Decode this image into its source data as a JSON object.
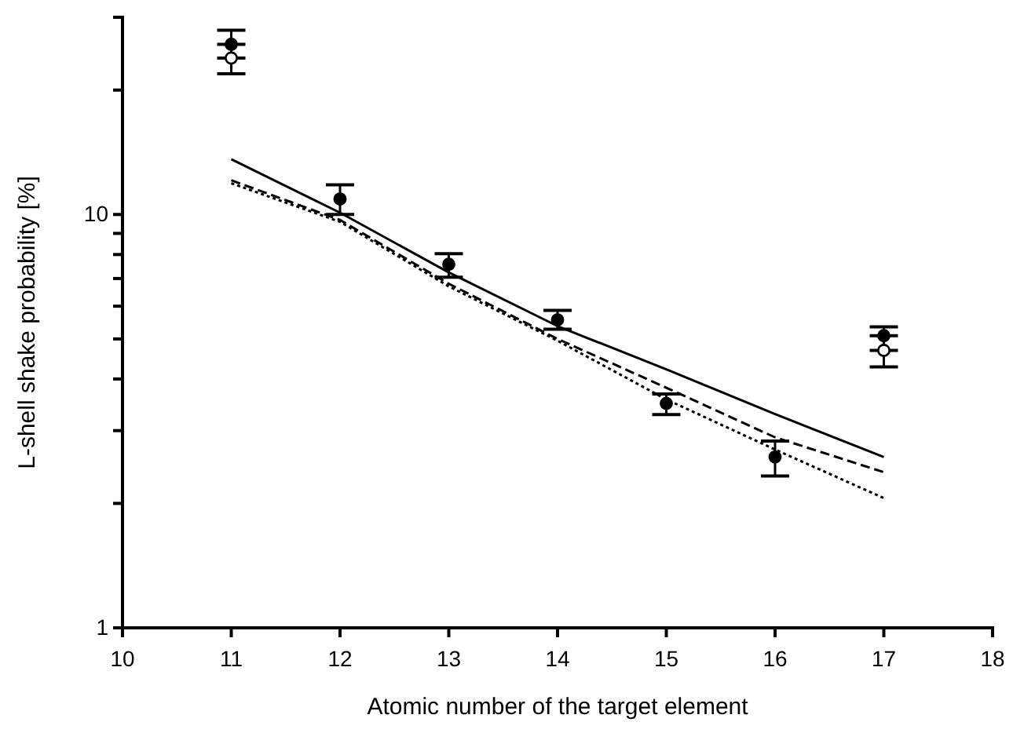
{
  "chart_data": {
    "type": "scatter",
    "xlabel": "Atomic number of the target element",
    "ylabel": "L-shell shake probability [%]",
    "xlim": [
      10,
      18
    ],
    "xticks": [
      10,
      11,
      12,
      13,
      14,
      15,
      16,
      17,
      18
    ],
    "ylim": [
      1,
      30
    ],
    "log": true,
    "yticks": [
      1,
      {
        "value": 2,
        "label": null
      },
      {
        "value": 3,
        "label": null
      },
      {
        "value": 4,
        "label": null
      },
      {
        "value": 5,
        "label": null
      },
      {
        "value": 6,
        "label": null
      },
      {
        "value": 7,
        "label": null
      },
      {
        "value": 8,
        "label": null
      },
      {
        "value": 9,
        "label": null
      },
      10,
      {
        "value": 20,
        "label": null
      },
      {
        "value": 30,
        "label": null
      }
    ],
    "grid": false,
    "series": [
      {
        "type": "line",
        "color": "#000000",
        "line_style": "solid",
        "marker": "none",
        "x": [
          11,
          12,
          13,
          14,
          15,
          16,
          17
        ],
        "values": [
          13.6,
          10.1,
          7.24,
          5.37,
          4.22,
          3.29,
          2.59
        ]
      },
      {
        "type": "line",
        "color": "#000000",
        "line_style": "dashed",
        "marker": "none",
        "x": [
          11,
          12,
          13,
          14,
          15,
          16,
          17
        ],
        "values": [
          12.1,
          9.7,
          6.8,
          5.0,
          3.81,
          2.89,
          2.38
        ]
      },
      {
        "type": "line",
        "color": "#000000",
        "line_style": "dotted",
        "marker": "none",
        "x": [
          11,
          12,
          13,
          14,
          15,
          16,
          17
        ],
        "values": [
          11.9,
          9.6,
          6.7,
          4.95,
          3.57,
          2.7,
          2.06
        ]
      },
      {
        "color": "#000000",
        "marker": "circle",
        "x": [
          11,
          12,
          13,
          14,
          15,
          16,
          17
        ],
        "values": [
          25.8,
          10.9,
          7.58,
          5.56,
          3.49,
          2.59,
          5.09
        ],
        "errors": [
          [
            23.9,
            27.9
          ],
          [
            10.0,
            11.8
          ],
          [
            7.05,
            8.04
          ],
          [
            5.28,
            5.86
          ],
          [
            3.28,
            3.68
          ],
          [
            2.33,
            2.83
          ],
          [
            4.69,
            5.35
          ]
        ]
      },
      {
        "color": "#ffffff",
        "marker": "circle",
        "x": [
          11,
          17
        ],
        "values": [
          23.9,
          4.69
        ],
        "errors": [
          [
            21.9,
            25.8
          ],
          [
            4.28,
            5.09
          ]
        ]
      }
    ]
  }
}
